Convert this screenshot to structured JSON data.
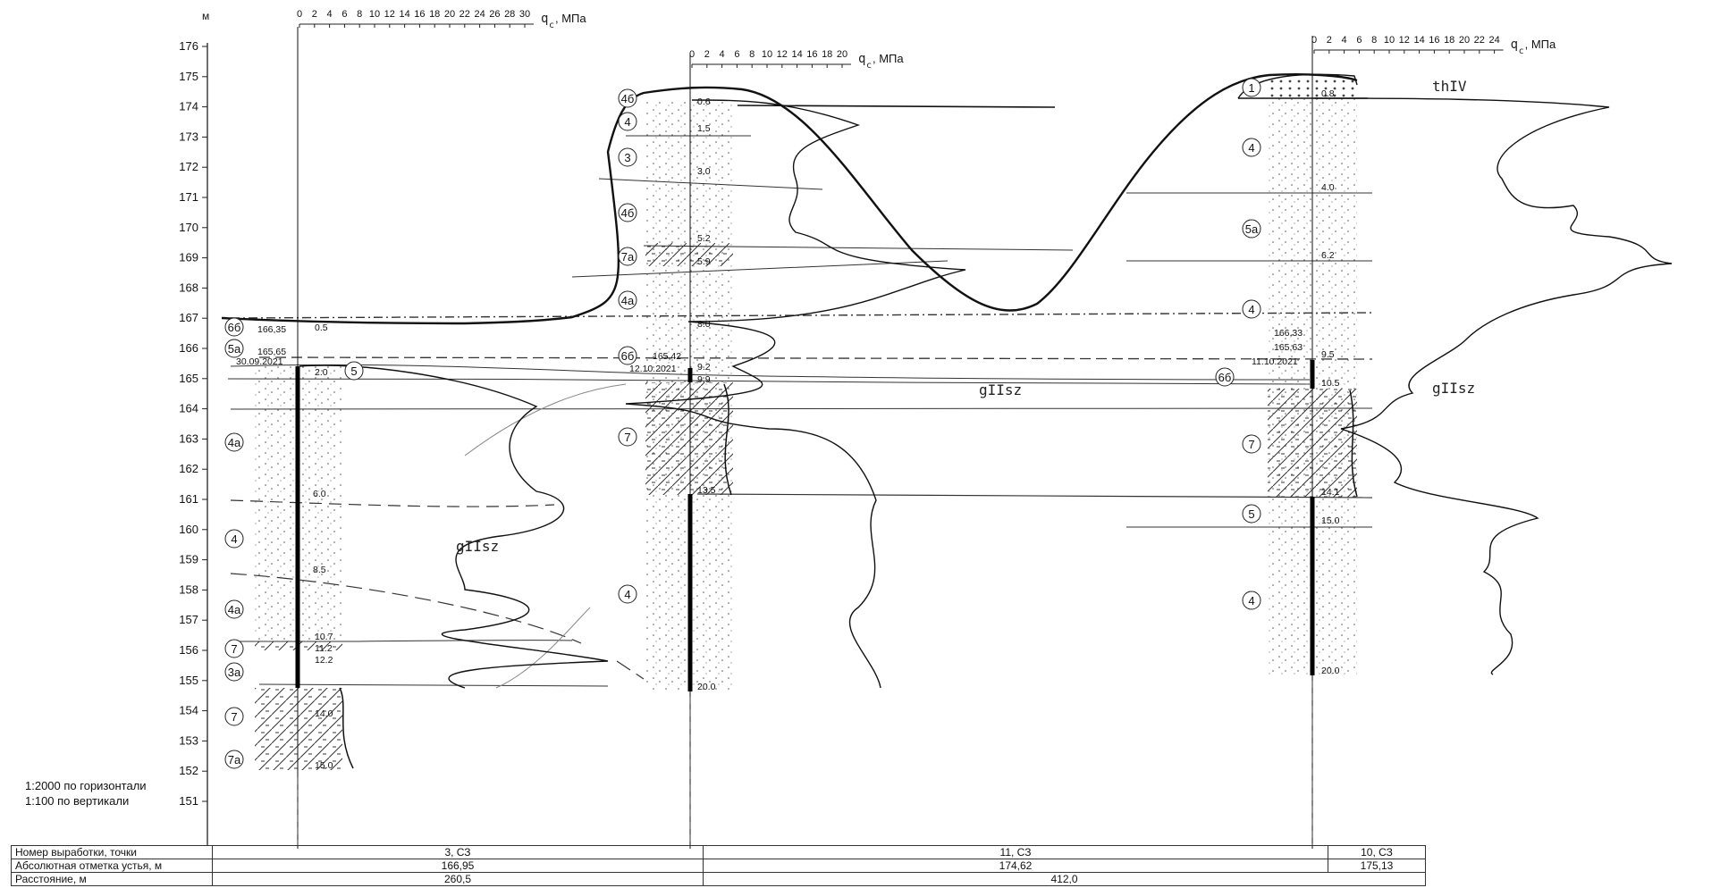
{
  "axis": {
    "unit": "м",
    "elevations": [
      "176",
      "175",
      "174",
      "173",
      "172",
      "171",
      "170",
      "169",
      "168",
      "167",
      "166",
      "165",
      "164",
      "163",
      "162",
      "161",
      "160",
      "159",
      "158",
      "157",
      "156",
      "155",
      "154",
      "153",
      "152",
      "151"
    ]
  },
  "cpt_axes": [
    {
      "ticks": [
        "0",
        "2",
        "4",
        "6",
        "8",
        "10",
        "12",
        "14",
        "16",
        "18",
        "20",
        "22",
        "24",
        "26",
        "28",
        "30"
      ],
      "label": "q",
      "sub": "c",
      "unit": ", МПа"
    },
    {
      "ticks": [
        "0",
        "2",
        "4",
        "6",
        "8",
        "10",
        "12",
        "14",
        "16",
        "18",
        "20"
      ],
      "label": "q",
      "sub": "c",
      "unit": ", МПа"
    },
    {
      "ticks": [
        "0",
        "2",
        "4",
        "6",
        "8",
        "10",
        "12",
        "14",
        "16",
        "18",
        "20",
        "22",
        "24"
      ],
      "label": "q",
      "sub": "c",
      "unit": ", МПа"
    }
  ],
  "boreholes": [
    {
      "depths": [
        "0.5",
        "2.0",
        "6.0",
        "8.5",
        "10.7",
        "11.2",
        "12.2",
        "14.0",
        "15.0"
      ],
      "marks": [
        "166,35",
        "165,65",
        "30.09.2021"
      ],
      "layers": [
        "6б",
        "5а",
        "5",
        "4а",
        "4",
        "4а",
        "7",
        "3а",
        "7",
        "7а"
      ]
    },
    {
      "depths": [
        "0.6",
        "1.5",
        "3.0",
        "5.2",
        "5.9",
        "8.0",
        "9.2",
        "9.9",
        "13.5",
        "20.0"
      ],
      "marks": [
        "165,42",
        "12.10.2021"
      ],
      "layers": [
        "4б",
        "4",
        "3",
        "4б",
        "7а",
        "4а",
        "6б",
        "7",
        "4"
      ]
    },
    {
      "depths": [
        "0.8",
        "4.0",
        "6.2",
        "9.5",
        "10.5",
        "14.1",
        "15.0",
        "20.0"
      ],
      "marks": [
        "166,33",
        "165,63",
        "11.10.2021"
      ],
      "layers": [
        "1",
        "4",
        "5а",
        "4",
        "6б",
        "7",
        "5",
        "4"
      ]
    }
  ],
  "geology_labels": [
    "gIIsz",
    "gIIsz",
    "gIIsz",
    "thIV"
  ],
  "scale_note": {
    "horizontal": "1:2000 по горизонтали",
    "vertical": "1:100 по вертикали"
  },
  "table": {
    "rows": [
      {
        "label": "Номер выработки, точки",
        "values": [
          "3, СЗ",
          "11, СЗ",
          "10, СЗ"
        ]
      },
      {
        "label": "Абсолютная отметка устья, м",
        "values": [
          "166,95",
          "174,62",
          "175,13"
        ]
      },
      {
        "label": "Расстояние, м",
        "values": [
          "260,5",
          "412,0"
        ]
      }
    ]
  }
}
